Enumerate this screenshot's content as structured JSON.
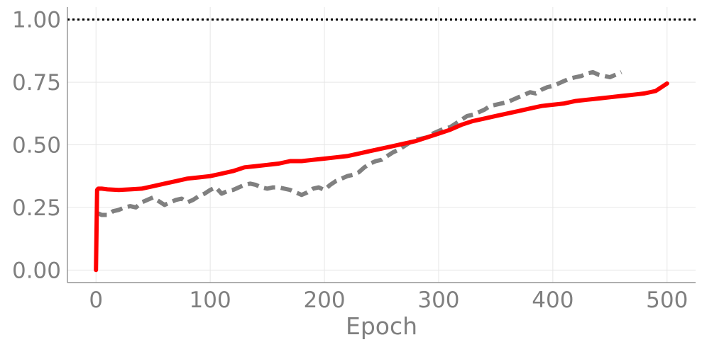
{
  "chart_data": {
    "type": "line",
    "title": "",
    "xlabel": "Epoch",
    "ylabel": "",
    "xlim": [
      -25,
      525
    ],
    "ylim": [
      -0.05,
      1.05
    ],
    "x_ticks": [
      0,
      100,
      200,
      300,
      400,
      500
    ],
    "y_ticks": [
      0.0,
      0.25,
      0.5,
      0.75,
      1.0
    ],
    "x_tick_labels": [
      "0",
      "100",
      "200",
      "300",
      "400",
      "500"
    ],
    "y_tick_labels": [
      "0.00",
      "0.25",
      "0.50",
      "0.75",
      "1.00"
    ],
    "grid": true,
    "legend": "none",
    "reference_line": {
      "y": 1.0,
      "style": "dotted",
      "color": "#000000"
    },
    "series": [
      {
        "color": "#ff0000",
        "style": "solid",
        "x": [
          0,
          1,
          2,
          5,
          10,
          20,
          30,
          40,
          50,
          60,
          70,
          80,
          90,
          100,
          110,
          120,
          130,
          140,
          150,
          160,
          170,
          180,
          190,
          200,
          210,
          220,
          230,
          240,
          250,
          260,
          270,
          280,
          290,
          300,
          310,
          320,
          330,
          340,
          350,
          360,
          370,
          380,
          390,
          400,
          410,
          420,
          430,
          440,
          450,
          460,
          470,
          480,
          490,
          500
        ],
        "values": [
          0.0,
          0.32,
          0.325,
          0.325,
          0.322,
          0.32,
          0.322,
          0.325,
          0.335,
          0.345,
          0.355,
          0.365,
          0.37,
          0.375,
          0.385,
          0.395,
          0.41,
          0.415,
          0.42,
          0.425,
          0.435,
          0.435,
          0.44,
          0.445,
          0.45,
          0.455,
          0.465,
          0.475,
          0.485,
          0.495,
          0.505,
          0.515,
          0.53,
          0.545,
          0.56,
          0.58,
          0.595,
          0.605,
          0.615,
          0.625,
          0.635,
          0.645,
          0.655,
          0.66,
          0.665,
          0.675,
          0.68,
          0.685,
          0.69,
          0.695,
          0.7,
          0.705,
          0.715,
          0.745
        ]
      },
      {
        "color": "#808080",
        "style": "dashed",
        "x": [
          0,
          5,
          10,
          15,
          20,
          25,
          30,
          35,
          40,
          45,
          50,
          55,
          60,
          65,
          70,
          75,
          80,
          85,
          90,
          95,
          100,
          105,
          110,
          115,
          120,
          125,
          130,
          135,
          140,
          145,
          150,
          155,
          160,
          165,
          170,
          175,
          180,
          185,
          190,
          195,
          200,
          205,
          210,
          215,
          220,
          225,
          230,
          235,
          240,
          245,
          250,
          255,
          260,
          265,
          270,
          275,
          280,
          285,
          290,
          295,
          300,
          305,
          310,
          315,
          320,
          325,
          330,
          335,
          340,
          345,
          350,
          355,
          360,
          365,
          370,
          375,
          380,
          385,
          390,
          395,
          400,
          405,
          410,
          415,
          420,
          425,
          430,
          435,
          440,
          445,
          450,
          455,
          460
        ],
        "values": [
          0.23,
          0.22,
          0.22,
          0.235,
          0.24,
          0.25,
          0.255,
          0.25,
          0.27,
          0.28,
          0.29,
          0.275,
          0.26,
          0.27,
          0.28,
          0.285,
          0.27,
          0.28,
          0.295,
          0.305,
          0.32,
          0.33,
          0.305,
          0.315,
          0.32,
          0.33,
          0.34,
          0.345,
          0.34,
          0.33,
          0.325,
          0.33,
          0.33,
          0.325,
          0.32,
          0.31,
          0.3,
          0.31,
          0.325,
          0.33,
          0.32,
          0.34,
          0.355,
          0.365,
          0.375,
          0.38,
          0.39,
          0.41,
          0.425,
          0.435,
          0.44,
          0.455,
          0.47,
          0.48,
          0.495,
          0.51,
          0.52,
          0.525,
          0.53,
          0.545,
          0.555,
          0.565,
          0.57,
          0.585,
          0.6,
          0.615,
          0.62,
          0.63,
          0.64,
          0.655,
          0.66,
          0.665,
          0.67,
          0.68,
          0.69,
          0.7,
          0.71,
          0.705,
          0.72,
          0.73,
          0.735,
          0.745,
          0.755,
          0.765,
          0.77,
          0.775,
          0.785,
          0.79,
          0.78,
          0.775,
          0.77,
          0.78,
          0.79
        ]
      }
    ]
  }
}
